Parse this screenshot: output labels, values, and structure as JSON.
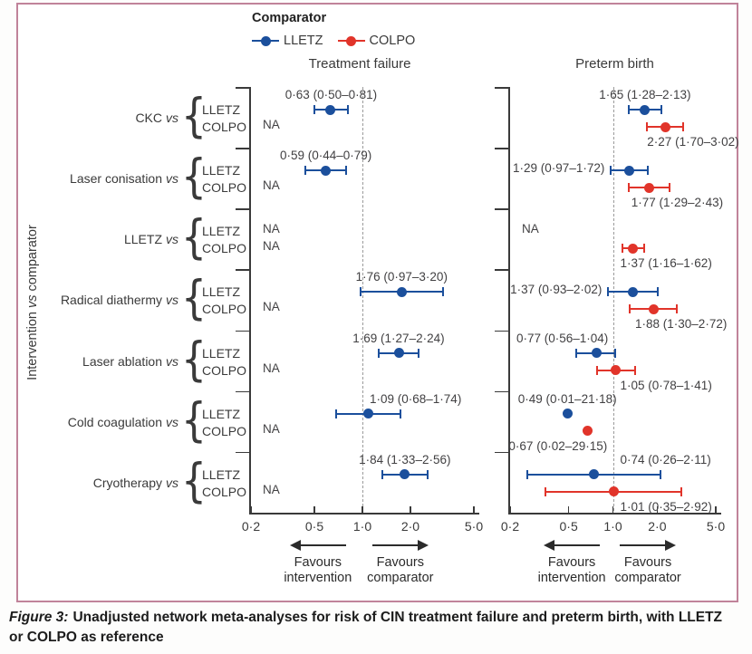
{
  "legend": {
    "title": "Comparator"
  },
  "y_axis_label": {
    "pre": "Intervention",
    "vs": "vs",
    "post": "comparator"
  },
  "caption": {
    "label": "Figure 3:",
    "text": "Unadjusted network meta-analyses for risk of CIN treatment failure and preterm birth, with LLETZ or COLPO as reference"
  },
  "chart_data": {
    "type": "forest",
    "x_scale": "log",
    "xlim": [
      0.2,
      5.0
    ],
    "x_ticks": [
      0.2,
      0.5,
      1.0,
      2.0,
      5.0
    ],
    "x_tick_labels": [
      "0·2",
      "0·5",
      "1·0",
      "2·0",
      "5·0"
    ],
    "reference_line": 1.0,
    "panels": [
      "Treatment failure",
      "Preterm birth"
    ],
    "vs_label": "vs",
    "brace_glyph": "{",
    "comparators": [
      {
        "name": "LLETZ",
        "color": "#1b4f9c"
      },
      {
        "name": "COLPO",
        "color": "#e1342a"
      }
    ],
    "favours": {
      "left": [
        "Favours",
        "intervention"
      ],
      "right": [
        "Favours",
        "comparator"
      ]
    },
    "groups": [
      {
        "name": "CKC",
        "treatment_failure": {
          "LLETZ": {
            "est": 0.63,
            "lo": 0.5,
            "hi": 0.81,
            "label": "0·63 (0·50–0·81)",
            "label_pos": "above"
          },
          "COLPO": {
            "na": "NA"
          }
        },
        "preterm_birth": {
          "LLETZ": {
            "est": 1.65,
            "lo": 1.28,
            "hi": 2.13,
            "label": "1·65 (1·28–2·13)",
            "label_pos": "above"
          },
          "COLPO": {
            "est": 2.27,
            "lo": 1.7,
            "hi": 3.02,
            "label": "2·27 (1·70–3·02)",
            "label_pos": "below-right"
          }
        }
      },
      {
        "name": "Laser conisation",
        "treatment_failure": {
          "LLETZ": {
            "est": 0.59,
            "lo": 0.44,
            "hi": 0.79,
            "label": "0·59 (0·44–0·79)",
            "label_pos": "above"
          },
          "COLPO": {
            "na": "NA"
          }
        },
        "preterm_birth": {
          "LLETZ": {
            "est": 1.29,
            "lo": 0.97,
            "hi": 1.72,
            "label": "1·29 (0·97–1·72)",
            "label_pos": "left"
          },
          "COLPO": {
            "est": 1.77,
            "lo": 1.29,
            "hi": 2.43,
            "label": "1·77 (1·29–2·43)",
            "label_pos": "below-right"
          }
        }
      },
      {
        "name": "LLETZ",
        "treatment_failure": {
          "LLETZ": {
            "na": "NA"
          },
          "COLPO": {
            "na": "NA"
          }
        },
        "preterm_birth": {
          "LLETZ": {
            "na": "NA"
          },
          "COLPO": {
            "est": 1.37,
            "lo": 1.16,
            "hi": 1.62,
            "label": "1·37 (1·16–1·62)",
            "label_pos": "below-right"
          }
        }
      },
      {
        "name": "Radical diathermy",
        "treatment_failure": {
          "LLETZ": {
            "est": 1.76,
            "lo": 0.97,
            "hi": 3.2,
            "label": "1·76 (0·97–3·20)",
            "label_pos": "above"
          },
          "COLPO": {
            "na": "NA"
          }
        },
        "preterm_birth": {
          "LLETZ": {
            "est": 1.37,
            "lo": 0.93,
            "hi": 2.02,
            "label": "1·37 (0·93–2·02)",
            "label_pos": "left"
          },
          "COLPO": {
            "est": 1.88,
            "lo": 1.3,
            "hi": 2.72,
            "label": "1·88 (1·30–2·72)",
            "label_pos": "below-right"
          }
        }
      },
      {
        "name": "Laser ablation",
        "treatment_failure": {
          "LLETZ": {
            "est": 1.69,
            "lo": 1.27,
            "hi": 2.24,
            "label": "1·69 (1·27–2·24)",
            "label_pos": "above"
          },
          "COLPO": {
            "na": "NA"
          }
        },
        "preterm_birth": {
          "LLETZ": {
            "est": 0.77,
            "lo": 0.56,
            "hi": 1.04,
            "label": "0·77 (0·56–1·04)",
            "label_pos": "above-left"
          },
          "COLPO": {
            "est": 1.05,
            "lo": 0.78,
            "hi": 1.41,
            "label": "1·05 (0·78–1·41)",
            "label_pos": "below-right"
          }
        }
      },
      {
        "name": "Cold coagulation",
        "treatment_failure": {
          "LLETZ": {
            "est": 1.09,
            "lo": 0.68,
            "hi": 1.74,
            "label": "1·09 (0·68–1·74)",
            "label_pos": "above-right"
          },
          "COLPO": {
            "na": "NA"
          }
        },
        "preterm_birth": {
          "LLETZ": {
            "est": 0.49,
            "lo": 0.01,
            "hi": 21.18,
            "label": "0·49 (0·01–21·18)",
            "label_pos": "above",
            "ci_shown": false
          },
          "COLPO": {
            "est": 0.67,
            "lo": 0.02,
            "hi": 29.15,
            "label": "0·67 (0·02–29·15)",
            "label_pos": "below-left",
            "ci_shown": false
          }
        }
      },
      {
        "name": "Cryotherapy",
        "treatment_failure": {
          "LLETZ": {
            "est": 1.84,
            "lo": 1.33,
            "hi": 2.56,
            "label": "1·84 (1·33–2·56)",
            "label_pos": "above"
          },
          "COLPO": {
            "na": "NA"
          }
        },
        "preterm_birth": {
          "LLETZ": {
            "est": 0.74,
            "lo": 0.26,
            "hi": 2.11,
            "label": "0·74 (0·26–2·11)",
            "label_pos": "above-right"
          },
          "COLPO": {
            "est": 1.01,
            "lo": 0.35,
            "hi": 2.92,
            "label": "1·01 (0·35–2·92)",
            "label_pos": "below-right"
          }
        }
      }
    ]
  }
}
